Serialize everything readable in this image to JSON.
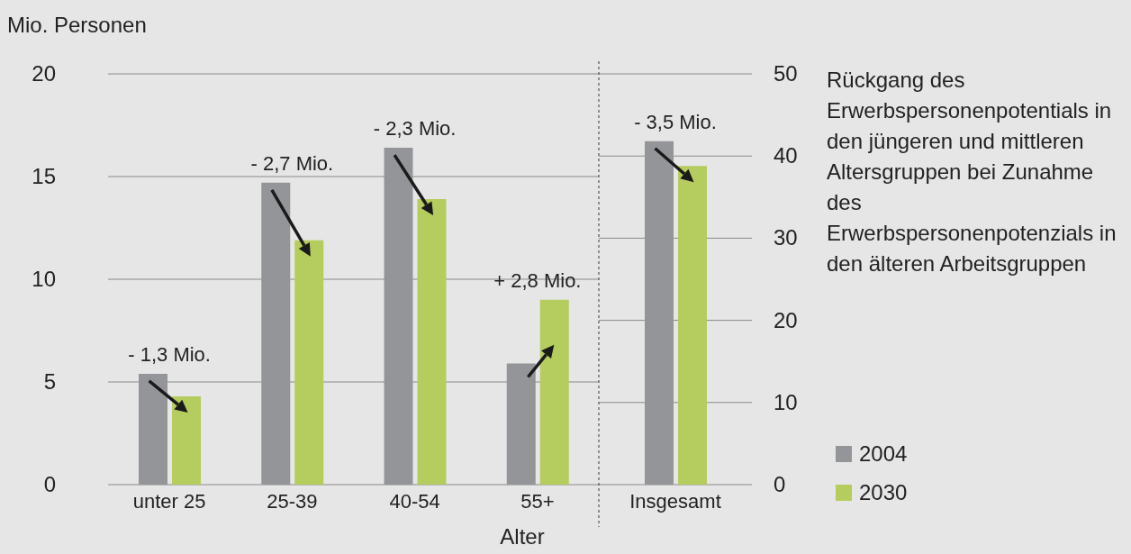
{
  "chart_data": [
    {
      "type": "bar",
      "categories": [
        "unter 25",
        "25-39",
        "40-54",
        "55+"
      ],
      "series": [
        {
          "color": "#939598",
          "values": [
            5.4,
            14.7,
            16.4,
            5.9
          ]
        },
        {
          "color": "#b5cc5e",
          "values": [
            4.3,
            11.9,
            13.9,
            9.0
          ]
        }
      ],
      "ylim": [
        0,
        20
      ],
      "yticks": [
        0,
        5,
        10,
        15,
        20
      ],
      "xlabel": "Alter",
      "ylabel": "Mio. Personen",
      "grid": "y",
      "annotations": [
        "- 1,3 Mio.",
        "- 2,7 Mio.",
        "- 2,3 Mio.",
        "+ 2,8 Mio."
      ]
    },
    {
      "type": "bar",
      "categories": [
        "Insgesamt"
      ],
      "series": [
        {
          "name": "2004",
          "color": "#939598",
          "values": [
            41.8
          ]
        },
        {
          "name": "2030",
          "color": "#b5cc5e",
          "values": [
            38.8
          ]
        }
      ],
      "ylim": [
        0,
        50
      ],
      "yticks": [
        0,
        10,
        20,
        30,
        40,
        50
      ],
      "grid": "y",
      "legend": "right",
      "annotations": [
        "- 3,5 Mio.",
        "Rückgang des Erwerbspersonenpotentials in den jüngeren und mittleren Altersgruppen bei Zunahme des Erwerbspersonenpotenzials in den älteren Arbeitsgruppen"
      ]
    }
  ]
}
